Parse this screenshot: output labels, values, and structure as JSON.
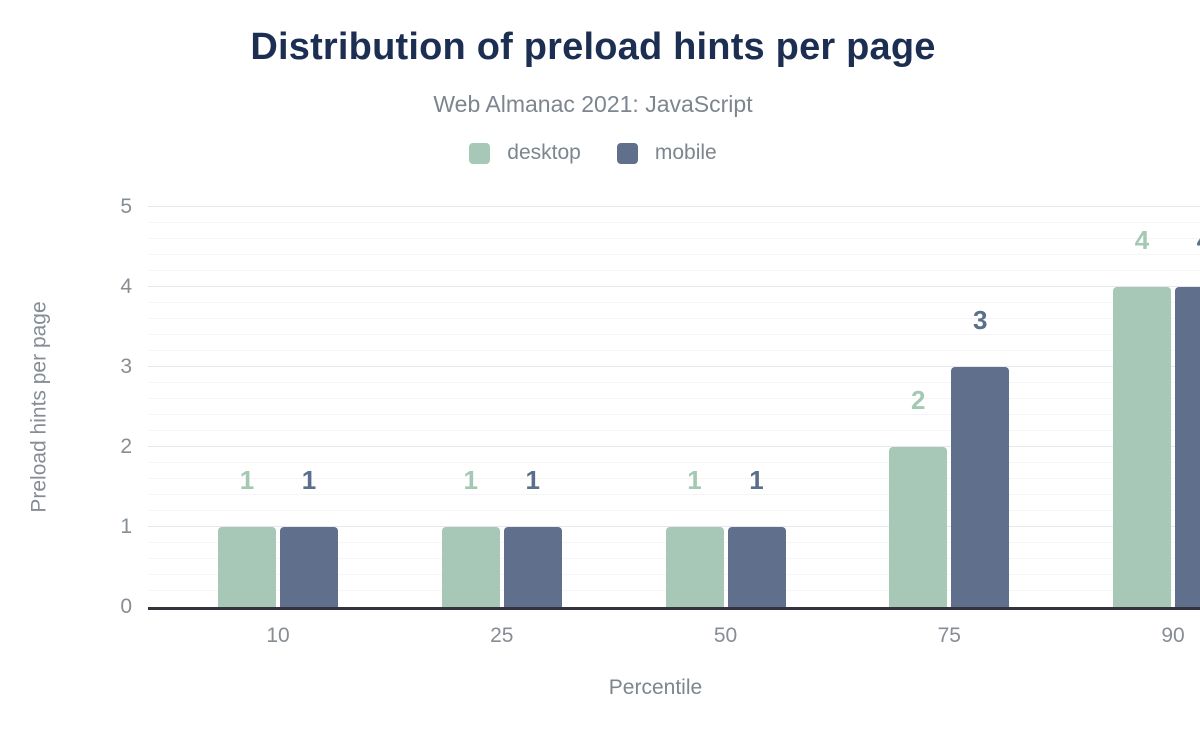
{
  "header": {
    "title": "Distribution of preload hints per page",
    "subtitle": "Web Almanac 2021: JavaScript"
  },
  "chart_data": {
    "type": "bar",
    "title": "Distribution of preload hints per page",
    "subtitle": "Web Almanac 2021: JavaScript",
    "categories": [
      "10",
      "25",
      "50",
      "75",
      "90"
    ],
    "series": [
      {
        "name": "desktop",
        "color": "#a7c8b6",
        "label_color": "#a3c8b3",
        "values": [
          1,
          1,
          1,
          2,
          4
        ]
      },
      {
        "name": "mobile",
        "color": "#5f6f8c",
        "label_color": "#5b6e8b",
        "values": [
          1,
          1,
          1,
          3,
          4
        ]
      }
    ],
    "xlabel": "Percentile",
    "ylabel": "Preload hints per page",
    "ylim": [
      0,
      5
    ],
    "yticks": [
      0,
      1,
      2,
      3,
      4,
      5
    ],
    "minor_tick_step": 0.2,
    "grid": "horizontal, major lines at integers with 4 minor lines between",
    "legend_position": "top-center",
    "data_labels": true
  },
  "colors": {
    "title": "#1c2e52",
    "subtitle": "#7d858e",
    "tick_text": "#868d95",
    "axis_line": "#32333b",
    "grid_major": "#e7e8ec",
    "grid_minor": "#f4f5f7",
    "background": "#ffffff"
  }
}
